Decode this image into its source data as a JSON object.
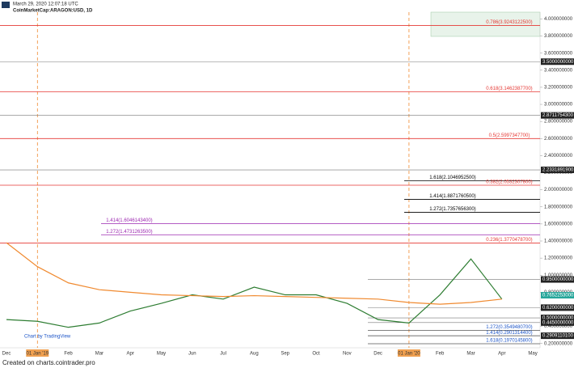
{
  "header": {
    "timestamp": "March 29, 2020 12:07:18 UTC",
    "symbol": "CoinMarketCap:ARAGON:USD, 1D"
  },
  "footer": "Created on charts.cointrader.pro",
  "watermark": "Chart by TradingView",
  "chart_data": {
    "type": "line",
    "categories": [
      "Dec",
      "01 Jan '19",
      "Feb",
      "Mar",
      "Apr",
      "May",
      "Jun",
      "Jul",
      "Aug",
      "Sep",
      "Oct",
      "Nov",
      "Dec",
      "01 Jan '20",
      "Feb",
      "Mar",
      "Apr",
      "May"
    ],
    "series": [
      {
        "color": "#2e7d32",
        "values": [
          0.48,
          0.46,
          0.39,
          0.44,
          0.58,
          0.67,
          0.77,
          0.72,
          0.86,
          0.77,
          0.77,
          0.67,
          0.48,
          0.44,
          0.77,
          1.19,
          0.72,
          null
        ]
      },
      {
        "color": "#f08a30",
        "values": [
          1.38,
          1.1,
          0.91,
          0.83,
          0.8,
          0.77,
          0.76,
          0.75,
          0.76,
          0.75,
          0.74,
          0.73,
          0.72,
          0.68,
          0.66,
          0.68,
          0.72,
          null
        ]
      }
    ],
    "ylim": [
      0.15,
      4.08
    ],
    "yticks": [
      {
        "value": 4.0,
        "label": "4.000000000"
      },
      {
        "value": 3.8,
        "label": "3.800000000"
      },
      {
        "value": 3.6,
        "label": "3.600000000"
      },
      {
        "value": 3.4,
        "label": "3.400000000"
      },
      {
        "value": 3.2,
        "label": "3.200000000"
      },
      {
        "value": 3.0,
        "label": "3.000000000"
      },
      {
        "value": 2.8,
        "label": "2.800000000"
      },
      {
        "value": 2.6,
        "label": "2.600000000"
      },
      {
        "value": 2.4,
        "label": "2.400000000"
      },
      {
        "value": 2.2,
        "label": "2.200000000"
      },
      {
        "value": 2.0,
        "label": "2.000000000"
      },
      {
        "value": 1.8,
        "label": "1.800000000"
      },
      {
        "value": 1.6,
        "label": "1.600000000"
      },
      {
        "value": 1.4,
        "label": "1.400000000"
      },
      {
        "value": 1.2,
        "label": "1.200000000"
      },
      {
        "value": 1.0,
        "label": "1.000000000"
      },
      {
        "value": 0.8,
        "label": "0.800000000"
      },
      {
        "value": 0.6,
        "label": "0.600000000"
      },
      {
        "value": 0.4,
        "label": "0.400000000"
      },
      {
        "value": 0.2,
        "label": "0.200000000"
      }
    ],
    "levels": [
      {
        "value": 3.92431225,
        "label": "0.786(3.9243122500)",
        "color": "#e53935"
      },
      {
        "value": 3.14623877,
        "label": "0.618(3.1462387700)",
        "color": "#e53935"
      },
      {
        "value": 2.59973477,
        "label": "0.5(2.5997347700)",
        "color": "#e53935"
      },
      {
        "value": 2.10469525,
        "label": "1.618(2.1046952500)",
        "color": "#000000"
      },
      {
        "value": 2.05323078,
        "label": "0.382(2.0532307800)",
        "color": "#e53935"
      },
      {
        "value": 1.88717605,
        "label": "1.414(1.8871760500)",
        "color": "#000000"
      },
      {
        "value": 1.73576563,
        "label": "1.272(1.7357656300)",
        "color": "#000000"
      },
      {
        "value": 1.60461434,
        "label": "1.414(1.6046143400)",
        "color": "#9c27b0"
      },
      {
        "value": 1.47312635,
        "label": "1.272(1.4731263500)",
        "color": "#9c27b0"
      },
      {
        "value": 1.37704787,
        "label": "0.236(1.3770478700)",
        "color": "#e53935"
      },
      {
        "value": 0.35494807,
        "label": "1.272(0.3549480700)",
        "color": "#1e56c8"
      },
      {
        "value": 0.29013144,
        "label": "1.414(0.2901314400)",
        "color": "#1e56c8"
      },
      {
        "value": 0.19701458,
        "label": "1.618(0.1970145800)",
        "color": "#1e56c8"
      }
    ],
    "price_marks": [
      {
        "value": 3.5,
        "label": "3.5000000000",
        "color": "#222222"
      },
      {
        "value": 2.87117543,
        "label": "2.8711754300",
        "color": "#222222"
      },
      {
        "value": 2.23318919,
        "label": "2.2331891900",
        "color": "#222222"
      },
      {
        "value": 0.95,
        "label": "0.9500000000",
        "color": "#222222"
      },
      {
        "value": 0.7652253,
        "label": "0.7652253000",
        "color": "#26a69a"
      },
      {
        "value": 0.62,
        "label": "0.6200000000",
        "color": "#222222"
      },
      {
        "value": 0.5,
        "label": "0.5000000000",
        "color": "#222222"
      },
      {
        "value": 0.445,
        "label": "0.4450000000",
        "color": "#222222"
      },
      {
        "value": 0.29091101,
        "label": "0.2909110100",
        "color": "#222222"
      }
    ]
  }
}
